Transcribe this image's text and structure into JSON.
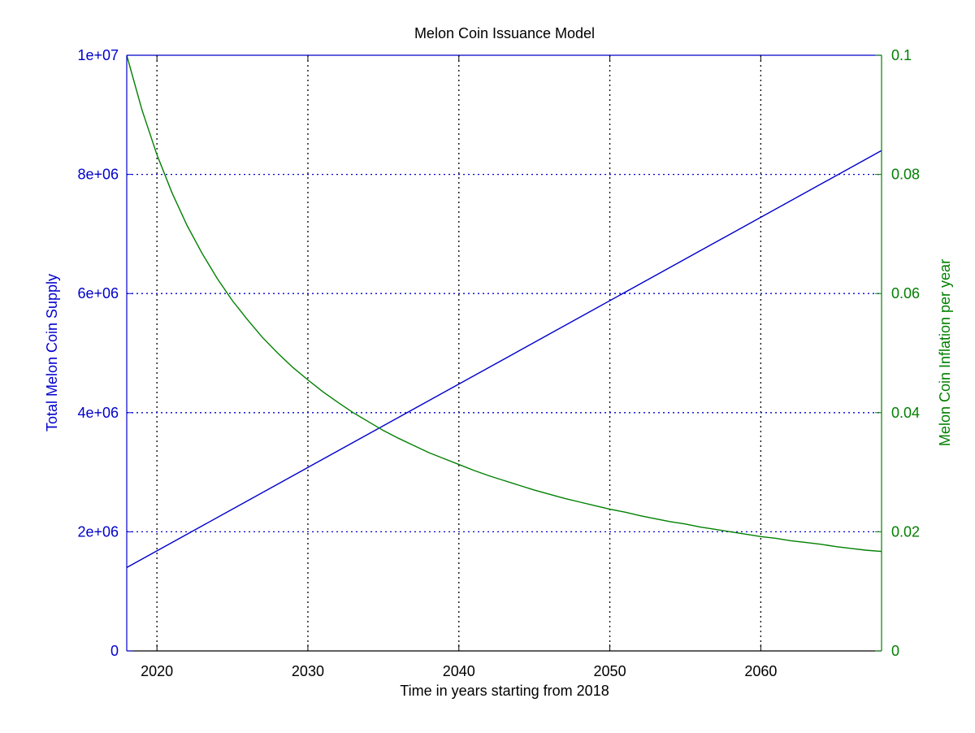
{
  "chart_data": {
    "type": "line",
    "title": "Melon Coin Issuance Model",
    "xlabel": "Time in years starting from 2018",
    "ylabel_left": "Total Melon Coin  Supply",
    "ylabel_right": "Melon Coin Inflation per year",
    "xlim": [
      2018,
      2068
    ],
    "ylim_left": [
      0,
      10000000
    ],
    "ylim_right": [
      0,
      0.1
    ],
    "x_ticks": [
      2020,
      2030,
      2040,
      2050,
      2060
    ],
    "x_tick_labels": [
      "2020",
      "2030",
      "2040",
      "2050",
      "2060"
    ],
    "y_left_ticks": [
      0,
      2000000,
      4000000,
      6000000,
      8000000,
      10000000
    ],
    "y_left_tick_labels": [
      "0",
      "2e+06",
      "4e+06",
      "6e+06",
      "8e+06",
      "1e+07"
    ],
    "y_right_ticks": [
      0,
      0.02,
      0.04,
      0.06,
      0.08,
      0.1
    ],
    "y_right_tick_labels": [
      "0",
      "0.02",
      "0.04",
      "0.06",
      "0.08",
      "0.1"
    ],
    "grid": true,
    "series": [
      {
        "axis": "left",
        "color": "#0000cc",
        "x": [
          2018,
          2068
        ],
        "values": [
          1400000,
          8400000
        ]
      },
      {
        "axis": "right",
        "color": "#008000",
        "x": [
          2018,
          2019,
          2020,
          2021,
          2022,
          2023,
          2024,
          2025,
          2026,
          2027,
          2028,
          2029,
          2030,
          2031,
          2032,
          2033,
          2034,
          2035,
          2036,
          2037,
          2038,
          2039,
          2040,
          2041,
          2042,
          2043,
          2044,
          2045,
          2046,
          2047,
          2048,
          2049,
          2050,
          2051,
          2052,
          2053,
          2054,
          2055,
          2056,
          2057,
          2058,
          2059,
          2060,
          2061,
          2062,
          2063,
          2064,
          2065,
          2066,
          2067,
          2068
        ],
        "values": [
          0.1,
          0.0909,
          0.0833,
          0.0769,
          0.0714,
          0.0667,
          0.0625,
          0.0588,
          0.0556,
          0.0526,
          0.05,
          0.0476,
          0.0455,
          0.0435,
          0.0417,
          0.04,
          0.0385,
          0.037,
          0.0357,
          0.0345,
          0.0333,
          0.0323,
          0.0313,
          0.0303,
          0.0294,
          0.0286,
          0.0278,
          0.027,
          0.0263,
          0.0256,
          0.025,
          0.0244,
          0.0238,
          0.0233,
          0.0227,
          0.0222,
          0.0217,
          0.0213,
          0.0208,
          0.0204,
          0.02,
          0.0196,
          0.0192,
          0.0189,
          0.0185,
          0.0182,
          0.0179,
          0.0175,
          0.0172,
          0.0169,
          0.0167
        ]
      }
    ]
  }
}
